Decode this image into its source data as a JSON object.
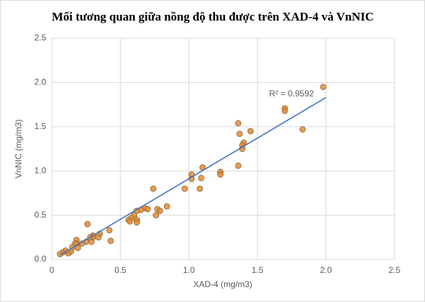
{
  "chart_data": {
    "type": "scatter",
    "title": "Mối tương quan giữa nồng độ thu được trên XAD-4 và VnNIC",
    "x_label": "XAD-4 (mg/m3)",
    "y_label": "VnNIC (mg/m3)",
    "x": [
      1.98,
      1.7,
      1.7,
      1.83,
      1.45,
      1.36,
      1.37,
      1.4,
      1.39,
      1.39,
      1.36,
      1.23,
      1.23,
      1.1,
      1.09,
      1.08,
      1.02,
      1.02,
      0.97,
      0.74,
      0.68,
      0.7,
      0.65,
      0.62,
      0.84,
      0.77,
      0.79,
      0.76,
      0.6,
      0.58,
      0.62,
      0.62,
      0.56,
      0.57,
      0.42,
      0.43,
      0.35,
      0.34,
      0.3,
      0.3,
      0.26,
      0.28,
      0.25,
      0.29,
      0.22,
      0.18,
      0.18,
      0.17,
      0.19,
      0.15,
      0.14,
      0.12,
      0.1,
      0.08,
      0.06
    ],
    "values": [
      1.95,
      1.71,
      1.68,
      1.47,
      1.45,
      1.54,
      1.42,
      1.32,
      1.29,
      1.25,
      1.06,
      0.99,
      0.96,
      1.04,
      0.92,
      0.8,
      0.96,
      0.91,
      0.8,
      0.8,
      0.58,
      0.57,
      0.56,
      0.55,
      0.6,
      0.57,
      0.55,
      0.5,
      0.5,
      0.47,
      0.45,
      0.42,
      0.45,
      0.43,
      0.33,
      0.21,
      0.29,
      0.25,
      0.27,
      0.25,
      0.4,
      0.25,
      0.2,
      0.2,
      0.18,
      0.22,
      0.18,
      0.18,
      0.13,
      0.14,
      0.09,
      0.07,
      0.1,
      0.08,
      0.06
    ],
    "color": "#e8892c",
    "trendline": {
      "x": [
        0.06,
        2.0
      ],
      "y": [
        0.05,
        1.83
      ],
      "label": "R² = 0.9592",
      "color": "#4472c4"
    },
    "xlim": [
      0,
      2.5
    ],
    "xticks": [
      0,
      0.5,
      {
        "value": 1,
        "label": "1.0"
      },
      1.5,
      {
        "value": 2,
        "label": "2.0"
      },
      2.5
    ],
    "ylim": [
      0,
      2.5
    ],
    "yticks": [
      {
        "value": 0,
        "label": "0.0"
      },
      0.5,
      {
        "value": 1,
        "label": "1.0"
      },
      1.5,
      {
        "value": 2,
        "label": "2.0"
      },
      2.5
    ],
    "grid": true
  }
}
